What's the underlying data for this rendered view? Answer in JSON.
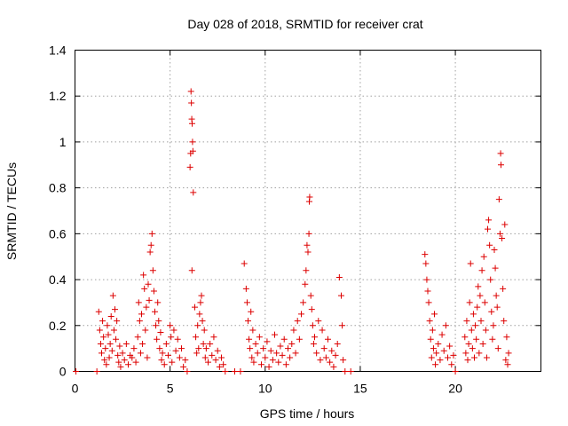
{
  "chart_data": {
    "type": "scatter",
    "title": "Day 028 of 2018, SRMTID for receiver crat",
    "xlabel": "GPS time / hours",
    "ylabel": "SRMTID / TECUs",
    "xlim": [
      0,
      24.5
    ],
    "ylim": [
      0,
      1.4
    ],
    "xticks": [
      0,
      5,
      10,
      15,
      20
    ],
    "xtick_labels": [
      "0",
      "5",
      "10",
      "15",
      "20"
    ],
    "yticks": [
      0,
      0.2,
      0.4,
      0.6,
      0.8,
      1,
      1.2,
      1.4
    ],
    "ytick_labels": [
      "0",
      "0.2",
      "0.4",
      "0.6",
      "0.8",
      "1",
      "1.2",
      "1.4"
    ],
    "grid": true,
    "marker": "+",
    "color": "#dd0000",
    "series": [
      {
        "name": "SRMTID",
        "points": [
          [
            0.05,
            0
          ],
          [
            1.15,
            0
          ],
          [
            1.25,
            0.26
          ],
          [
            1.3,
            0.18
          ],
          [
            1.35,
            0.12
          ],
          [
            1.4,
            0.08
          ],
          [
            1.45,
            0.22
          ],
          [
            1.5,
            0.15
          ],
          [
            1.55,
            0.05
          ],
          [
            1.6,
            0.1
          ],
          [
            1.65,
            0.03
          ],
          [
            1.7,
            0.2
          ],
          [
            1.75,
            0.16
          ],
          [
            1.8,
            0.06
          ],
          [
            1.85,
            0.12
          ],
          [
            1.9,
            0.24
          ],
          [
            1.95,
            0.09
          ],
          [
            2.0,
            0.33
          ],
          [
            2.05,
            0.18
          ],
          [
            2.1,
            0.27
          ],
          [
            2.15,
            0.14
          ],
          [
            2.2,
            0.22
          ],
          [
            2.25,
            0.07
          ],
          [
            2.3,
            0.04
          ],
          [
            2.35,
            0.11
          ],
          [
            2.4,
            0.02
          ],
          [
            2.5,
            0.08
          ],
          [
            2.6,
            0.05
          ],
          [
            2.7,
            0.12
          ],
          [
            2.8,
            0.03
          ],
          [
            2.9,
            0.07
          ],
          [
            3.0,
            0.06
          ],
          [
            3.1,
            0.1
          ],
          [
            3.2,
            0.04
          ],
          [
            3.3,
            0.15
          ],
          [
            3.35,
            0.3
          ],
          [
            3.4,
            0.22
          ],
          [
            3.45,
            0.08
          ],
          [
            3.5,
            0.25
          ],
          [
            3.55,
            0.12
          ],
          [
            3.6,
            0.42
          ],
          [
            3.65,
            0.36
          ],
          [
            3.7,
            0.18
          ],
          [
            3.75,
            0.28
          ],
          [
            3.8,
            0.06
          ],
          [
            3.85,
            0.38
          ],
          [
            3.9,
            0.31
          ],
          [
            3.95,
            0.52
          ],
          [
            4.0,
            0.55
          ],
          [
            4.05,
            0.6
          ],
          [
            4.1,
            0.44
          ],
          [
            4.15,
            0.35
          ],
          [
            4.2,
            0.26
          ],
          [
            4.25,
            0.2
          ],
          [
            4.3,
            0.14
          ],
          [
            4.35,
            0.3
          ],
          [
            4.4,
            0.22
          ],
          [
            4.45,
            0.1
          ],
          [
            4.5,
            0.17
          ],
          [
            4.55,
            0.05
          ],
          [
            4.6,
            0.08
          ],
          [
            4.7,
            0.03
          ],
          [
            4.8,
            0.12
          ],
          [
            4.9,
            0.07
          ],
          [
            5.0,
            0.2
          ],
          [
            5.05,
            0.15
          ],
          [
            5.1,
            0.04
          ],
          [
            5.2,
            0.18
          ],
          [
            5.3,
            0.09
          ],
          [
            5.4,
            0.14
          ],
          [
            5.5,
            0.06
          ],
          [
            5.6,
            0.1
          ],
          [
            5.7,
            0.02
          ],
          [
            5.8,
            0.05
          ],
          [
            5.9,
            0
          ],
          [
            6.05,
            0.89
          ],
          [
            6.08,
            0.95
          ],
          [
            6.1,
            1.22
          ],
          [
            6.12,
            1.17
          ],
          [
            6.14,
            1.1
          ],
          [
            6.16,
            1.08
          ],
          [
            6.18,
            1.0
          ],
          [
            6.2,
            0.96
          ],
          [
            6.22,
            0.78
          ],
          [
            6.15,
            0.44
          ],
          [
            6.3,
            0.28
          ],
          [
            6.35,
            0.15
          ],
          [
            6.4,
            0.08
          ],
          [
            6.45,
            0.2
          ],
          [
            6.5,
            0.1
          ],
          [
            6.55,
            0.25
          ],
          [
            6.6,
            0.3
          ],
          [
            6.65,
            0.33
          ],
          [
            6.7,
            0.22
          ],
          [
            6.75,
            0.12
          ],
          [
            6.8,
            0.18
          ],
          [
            6.85,
            0.06
          ],
          [
            6.9,
            0.1
          ],
          [
            7.0,
            0.04
          ],
          [
            7.1,
            0.12
          ],
          [
            7.2,
            0.07
          ],
          [
            7.3,
            0.15
          ],
          [
            7.4,
            0.05
          ],
          [
            7.5,
            0.09
          ],
          [
            7.6,
            0.02
          ],
          [
            7.7,
            0.06
          ],
          [
            7.8,
            0.03
          ],
          [
            7.9,
            0
          ],
          [
            8.4,
            0
          ],
          [
            8.7,
            0
          ],
          [
            8.9,
            0.47
          ],
          [
            9.0,
            0.36
          ],
          [
            9.05,
            0.3
          ],
          [
            9.1,
            0.22
          ],
          [
            9.15,
            0.14
          ],
          [
            9.2,
            0.1
          ],
          [
            9.25,
            0.26
          ],
          [
            9.3,
            0.06
          ],
          [
            9.35,
            0.18
          ],
          [
            9.4,
            0.04
          ],
          [
            9.5,
            0.12
          ],
          [
            9.6,
            0.08
          ],
          [
            9.7,
            0.15
          ],
          [
            9.8,
            0.03
          ],
          [
            9.9,
            0.1
          ],
          [
            10.0,
            0.06
          ],
          [
            10.1,
            0.13
          ],
          [
            10.2,
            0.02
          ],
          [
            10.3,
            0.09
          ],
          [
            10.4,
            0.05
          ],
          [
            10.5,
            0.16
          ],
          [
            10.6,
            0.08
          ],
          [
            10.7,
            0.04
          ],
          [
            10.8,
            0.11
          ],
          [
            10.9,
            0.07
          ],
          [
            11.0,
            0.14
          ],
          [
            11.1,
            0.03
          ],
          [
            11.2,
            0.1
          ],
          [
            11.3,
            0.06
          ],
          [
            11.4,
            0.12
          ],
          [
            11.5,
            0.18
          ],
          [
            11.6,
            0.08
          ],
          [
            11.7,
            0.22
          ],
          [
            11.8,
            0.14
          ],
          [
            11.9,
            0.25
          ],
          [
            12.0,
            0.3
          ],
          [
            12.1,
            0.38
          ],
          [
            12.15,
            0.44
          ],
          [
            12.2,
            0.55
          ],
          [
            12.25,
            0.52
          ],
          [
            12.3,
            0.6
          ],
          [
            12.32,
            0.74
          ],
          [
            12.34,
            0.76
          ],
          [
            12.4,
            0.33
          ],
          [
            12.45,
            0.27
          ],
          [
            12.5,
            0.2
          ],
          [
            12.55,
            0.12
          ],
          [
            12.6,
            0.15
          ],
          [
            12.7,
            0.08
          ],
          [
            12.8,
            0.22
          ],
          [
            12.9,
            0.05
          ],
          [
            13.0,
            0.18
          ],
          [
            13.1,
            0.1
          ],
          [
            13.2,
            0.06
          ],
          [
            13.3,
            0.14
          ],
          [
            13.4,
            0.04
          ],
          [
            13.5,
            0.09
          ],
          [
            13.6,
            0.02
          ],
          [
            13.7,
            0.07
          ],
          [
            13.8,
            0.12
          ],
          [
            13.9,
            0.41
          ],
          [
            14.0,
            0.33
          ],
          [
            14.05,
            0.2
          ],
          [
            14.1,
            0.05
          ],
          [
            14.2,
            0
          ],
          [
            14.5,
            0
          ],
          [
            18.4,
            0.51
          ],
          [
            18.45,
            0.47
          ],
          [
            18.5,
            0.4
          ],
          [
            18.55,
            0.35
          ],
          [
            18.6,
            0.3
          ],
          [
            18.65,
            0.22
          ],
          [
            18.7,
            0.14
          ],
          [
            18.75,
            0.06
          ],
          [
            18.8,
            0.18
          ],
          [
            18.85,
            0.1
          ],
          [
            18.9,
            0.25
          ],
          [
            18.95,
            0.03
          ],
          [
            19.0,
            0.08
          ],
          [
            19.1,
            0.12
          ],
          [
            19.2,
            0.05
          ],
          [
            19.3,
            0.16
          ],
          [
            19.4,
            0.09
          ],
          [
            19.5,
            0.2
          ],
          [
            19.6,
            0.06
          ],
          [
            19.7,
            0.11
          ],
          [
            19.8,
            0.03
          ],
          [
            19.9,
            0.07
          ],
          [
            20.0,
            0
          ],
          [
            20.5,
            0.15
          ],
          [
            20.55,
            0.08
          ],
          [
            20.6,
            0.22
          ],
          [
            20.65,
            0.05
          ],
          [
            20.7,
            0.12
          ],
          [
            20.75,
            0.3
          ],
          [
            20.8,
            0.47
          ],
          [
            20.85,
            0.18
          ],
          [
            20.9,
            0.1
          ],
          [
            20.95,
            0.25
          ],
          [
            21.0,
            0.06
          ],
          [
            21.05,
            0.2
          ],
          [
            21.1,
            0.14
          ],
          [
            21.15,
            0.28
          ],
          [
            21.2,
            0.37
          ],
          [
            21.25,
            0.08
          ],
          [
            21.3,
            0.33
          ],
          [
            21.35,
            0.22
          ],
          [
            21.4,
            0.44
          ],
          [
            21.45,
            0.12
          ],
          [
            21.5,
            0.5
          ],
          [
            21.55,
            0.3
          ],
          [
            21.6,
            0.18
          ],
          [
            21.65,
            0.06
          ],
          [
            21.7,
            0.62
          ],
          [
            21.75,
            0.66
          ],
          [
            21.8,
            0.55
          ],
          [
            21.85,
            0.4
          ],
          [
            21.9,
            0.26
          ],
          [
            21.95,
            0.14
          ],
          [
            22.0,
            0.2
          ],
          [
            22.05,
            0.53
          ],
          [
            22.1,
            0.45
          ],
          [
            22.15,
            0.33
          ],
          [
            22.2,
            0.28
          ],
          [
            22.25,
            0.1
          ],
          [
            22.3,
            0.75
          ],
          [
            22.35,
            0.6
          ],
          [
            22.38,
            0.95
          ],
          [
            22.4,
            0.9
          ],
          [
            22.45,
            0.58
          ],
          [
            22.5,
            0.36
          ],
          [
            22.55,
            0.22
          ],
          [
            22.6,
            0.64
          ],
          [
            22.65,
            0.05
          ],
          [
            22.7,
            0.15
          ],
          [
            22.75,
            0.03
          ],
          [
            22.8,
            0.08
          ]
        ]
      }
    ]
  }
}
